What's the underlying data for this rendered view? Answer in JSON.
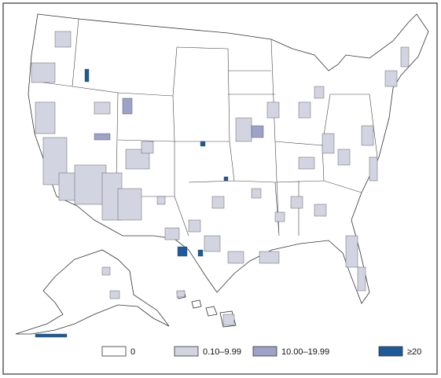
{
  "legend": {
    "items": [
      {
        "label": "0",
        "color": "#ffffff"
      },
      {
        "label": "0.10–9.99",
        "color": "#d3d4e2"
      },
      {
        "label": "10.00–19.99",
        "color": "#9da2c9"
      },
      {
        "label": "≥20",
        "color": "#1c5b99"
      }
    ]
  }
}
